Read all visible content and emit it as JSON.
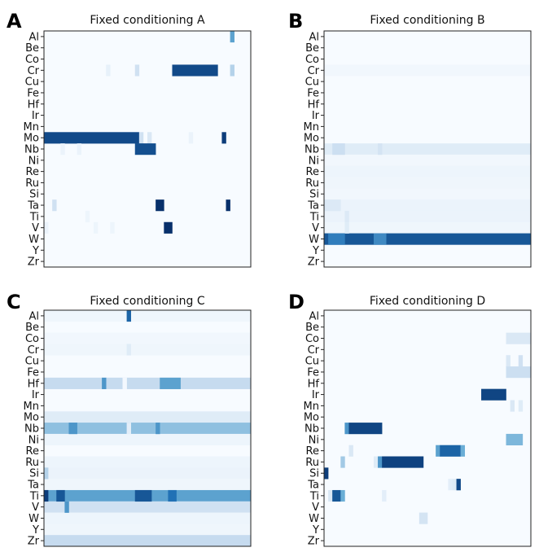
{
  "chart_data": [
    {
      "type": "heatmap",
      "panel_label": "A",
      "title": "Fixed conditioning A",
      "rows": [
        "Al",
        "Be",
        "Co",
        "Cr",
        "Cu",
        "Fe",
        "Hf",
        "Ir",
        "Mn",
        "Mo",
        "Nb",
        "Ni",
        "Re",
        "Ru",
        "Si",
        "Ta",
        "Ti",
        "V",
        "W",
        "Y",
        "Zr"
      ],
      "ncols": 50,
      "colormap": [
        "#f7fbff",
        "#c6dbef",
        "#6baed6",
        "#2171b5",
        "#08306b"
      ],
      "value_range": [
        0,
        1
      ],
      "grid": false,
      "legend": "none",
      "cells": [
        {
          "row": "Al",
          "cols": [
            45,
            45
          ],
          "value": 0.55
        },
        {
          "row": "Cr",
          "cols": [
            15,
            15
          ],
          "value": 0.08
        },
        {
          "row": "Cr",
          "cols": [
            22,
            22
          ],
          "value": 0.2
        },
        {
          "row": "Cr",
          "cols": [
            31,
            41
          ],
          "value": 0.9
        },
        {
          "row": "Cr",
          "cols": [
            45,
            45
          ],
          "value": 0.3
        },
        {
          "row": "Mo",
          "cols": [
            0,
            22
          ],
          "value": 0.9
        },
        {
          "row": "Mo",
          "cols": [
            23,
            23
          ],
          "value": 0.2
        },
        {
          "row": "Mo",
          "cols": [
            25,
            25
          ],
          "value": 0.15
        },
        {
          "row": "Mo",
          "cols": [
            35,
            35
          ],
          "value": 0.06
        },
        {
          "row": "Mo",
          "cols": [
            43,
            43
          ],
          "value": 0.95
        },
        {
          "row": "Nb",
          "cols": [
            4,
            4
          ],
          "value": 0.06
        },
        {
          "row": "Nb",
          "cols": [
            8,
            8
          ],
          "value": 0.06
        },
        {
          "row": "Nb",
          "cols": [
            22,
            26
          ],
          "value": 0.88
        },
        {
          "row": "Ta",
          "cols": [
            2,
            2
          ],
          "value": 0.2
        },
        {
          "row": "Ta",
          "cols": [
            27,
            28
          ],
          "value": 1.0
        },
        {
          "row": "Ta",
          "cols": [
            44,
            44
          ],
          "value": 1.0
        },
        {
          "row": "Ti",
          "cols": [
            10,
            10
          ],
          "value": 0.05
        },
        {
          "row": "V",
          "cols": [
            0,
            0
          ],
          "value": 0.06
        },
        {
          "row": "V",
          "cols": [
            12,
            12
          ],
          "value": 0.05
        },
        {
          "row": "V",
          "cols": [
            16,
            16
          ],
          "value": 0.05
        },
        {
          "row": "V",
          "cols": [
            29,
            30
          ],
          "value": 1.0
        }
      ]
    },
    {
      "type": "heatmap",
      "panel_label": "B",
      "title": "Fixed conditioning B",
      "rows": [
        "Al",
        "Be",
        "Co",
        "Cr",
        "Cu",
        "Fe",
        "Hf",
        "Ir",
        "Mn",
        "Mo",
        "Nb",
        "Ni",
        "Re",
        "Ru",
        "Si",
        "Ta",
        "Ti",
        "V",
        "W",
        "Y",
        "Zr"
      ],
      "ncols": 50,
      "colormap": [
        "#f7fbff",
        "#c6dbef",
        "#6baed6",
        "#2171b5",
        "#08306b"
      ],
      "value_range": [
        0,
        1
      ],
      "grid": false,
      "legend": "none",
      "row_fills": [
        {
          "row": "Cr",
          "value": 0.03
        },
        {
          "row": "Nb",
          "value": 0.12
        },
        {
          "row": "Ni",
          "value": 0.03
        },
        {
          "row": "Re",
          "value": 0.05
        },
        {
          "row": "Ru",
          "value": 0.04
        },
        {
          "row": "Si",
          "value": 0.03
        },
        {
          "row": "Ta",
          "value": 0.06
        },
        {
          "row": "Ti",
          "value": 0.06
        },
        {
          "row": "V",
          "value": 0.04
        },
        {
          "row": "W",
          "value": 0.85
        }
      ],
      "cells": [
        {
          "row": "Nb",
          "cols": [
            2,
            4
          ],
          "value": 0.22
        },
        {
          "row": "Nb",
          "cols": [
            13,
            13
          ],
          "value": 0.18
        },
        {
          "row": "Ta",
          "cols": [
            0,
            3
          ],
          "value": 0.14
        },
        {
          "row": "Ti",
          "cols": [
            5,
            5
          ],
          "value": 0.14
        },
        {
          "row": "V",
          "cols": [
            5,
            5
          ],
          "value": 0.12
        },
        {
          "row": "W",
          "cols": [
            1,
            4
          ],
          "value": 0.7
        },
        {
          "row": "W",
          "cols": [
            12,
            14
          ],
          "value": 0.65
        }
      ]
    },
    {
      "type": "heatmap",
      "panel_label": "C",
      "title": "Fixed conditioning C",
      "rows": [
        "Al",
        "Be",
        "Co",
        "Cr",
        "Cu",
        "Fe",
        "Hf",
        "Ir",
        "Mn",
        "Mo",
        "Nb",
        "Ni",
        "Re",
        "Ru",
        "Si",
        "Ta",
        "Ti",
        "V",
        "W",
        "Y",
        "Zr"
      ],
      "ncols": 50,
      "colormap": [
        "#f7fbff",
        "#c6dbef",
        "#6baed6",
        "#2171b5",
        "#08306b"
      ],
      "value_range": [
        0,
        1
      ],
      "grid": false,
      "legend": "none",
      "row_fills": [
        {
          "row": "Al",
          "value": 0.04
        },
        {
          "row": "Co",
          "value": 0.03
        },
        {
          "row": "Cr",
          "value": 0.04
        },
        {
          "row": "Hf",
          "value": 0.25
        },
        {
          "row": "Mo",
          "value": 0.12
        },
        {
          "row": "Nb",
          "value": 0.4
        },
        {
          "row": "Ni",
          "value": 0.05
        },
        {
          "row": "Ru",
          "value": 0.05
        },
        {
          "row": "Si",
          "value": 0.06
        },
        {
          "row": "Ta",
          "value": 0.04
        },
        {
          "row": "Ti",
          "value": 0.55
        },
        {
          "row": "V",
          "value": 0.2
        },
        {
          "row": "W",
          "value": 0.05
        },
        {
          "row": "Y",
          "value": 0.04
        },
        {
          "row": "Zr",
          "value": 0.25
        }
      ],
      "cells": [
        {
          "row": "Al",
          "cols": [
            20,
            20
          ],
          "value": 0.8
        },
        {
          "row": "Cr",
          "cols": [
            20,
            20
          ],
          "value": 0.12
        },
        {
          "row": "Hf",
          "cols": [
            14,
            14
          ],
          "value": 0.6
        },
        {
          "row": "Hf",
          "cols": [
            28,
            32
          ],
          "value": 0.55
        },
        {
          "row": "Hf",
          "cols": [
            19,
            19
          ],
          "value": 0.02
        },
        {
          "row": "Nb",
          "cols": [
            6,
            7
          ],
          "value": 0.6
        },
        {
          "row": "Nb",
          "cols": [
            20,
            20
          ],
          "value": 0.1
        },
        {
          "row": "Nb",
          "cols": [
            27,
            27
          ],
          "value": 0.6
        },
        {
          "row": "Si",
          "cols": [
            0,
            0
          ],
          "value": 0.3
        },
        {
          "row": "Ti",
          "cols": [
            0,
            0
          ],
          "value": 0.95
        },
        {
          "row": "Ti",
          "cols": [
            3,
            4
          ],
          "value": 0.85
        },
        {
          "row": "Ti",
          "cols": [
            22,
            25
          ],
          "value": 0.85
        },
        {
          "row": "Ti",
          "cols": [
            30,
            31
          ],
          "value": 0.75
        },
        {
          "row": "V",
          "cols": [
            5,
            5
          ],
          "value": 0.6
        }
      ]
    },
    {
      "type": "heatmap",
      "panel_label": "D",
      "title": "Fixed conditioning D",
      "rows": [
        "Al",
        "Be",
        "Co",
        "Cr",
        "Cu",
        "Fe",
        "Hf",
        "Ir",
        "Mn",
        "Mo",
        "Nb",
        "Ni",
        "Re",
        "Ru",
        "Si",
        "Ta",
        "Ti",
        "V",
        "W",
        "Y",
        "Zr"
      ],
      "ncols": 50,
      "colormap": [
        "#f7fbff",
        "#c6dbef",
        "#6baed6",
        "#2171b5",
        "#08306b"
      ],
      "value_range": [
        0,
        1
      ],
      "grid": false,
      "legend": "none",
      "cells": [
        {
          "row": "Co",
          "cols": [
            44,
            49
          ],
          "value": 0.15
        },
        {
          "row": "Cu",
          "cols": [
            44,
            44
          ],
          "value": 0.15
        },
        {
          "row": "Cu",
          "cols": [
            47,
            47
          ],
          "value": 0.2
        },
        {
          "row": "Fe",
          "cols": [
            44,
            49
          ],
          "value": 0.22
        },
        {
          "row": "Ir",
          "cols": [
            38,
            43
          ],
          "value": 0.92
        },
        {
          "row": "Mn",
          "cols": [
            45,
            45
          ],
          "value": 0.15
        },
        {
          "row": "Mn",
          "cols": [
            47,
            47
          ],
          "value": 0.12
        },
        {
          "row": "Nb",
          "cols": [
            5,
            5
          ],
          "value": 0.6
        },
        {
          "row": "Nb",
          "cols": [
            6,
            13
          ],
          "value": 0.92
        },
        {
          "row": "Ni",
          "cols": [
            44,
            47
          ],
          "value": 0.45
        },
        {
          "row": "Re",
          "cols": [
            6,
            6
          ],
          "value": 0.15
        },
        {
          "row": "Re",
          "cols": [
            27,
            27
          ],
          "value": 0.55
        },
        {
          "row": "Re",
          "cols": [
            28,
            32
          ],
          "value": 0.8
        },
        {
          "row": "Re",
          "cols": [
            33,
            33
          ],
          "value": 0.5
        },
        {
          "row": "Ru",
          "cols": [
            4,
            4
          ],
          "value": 0.35
        },
        {
          "row": "Ru",
          "cols": [
            12,
            12
          ],
          "value": 0.12
        },
        {
          "row": "Ru",
          "cols": [
            13,
            13
          ],
          "value": 0.6
        },
        {
          "row": "Ru",
          "cols": [
            14,
            23
          ],
          "value": 0.93
        },
        {
          "row": "Si",
          "cols": [
            0,
            0
          ],
          "value": 0.95
        },
        {
          "row": "Ta",
          "cols": [
            30,
            30
          ],
          "value": 0.1
        },
        {
          "row": "Ta",
          "cols": [
            31,
            31
          ],
          "value": 0.12
        },
        {
          "row": "Ta",
          "cols": [
            32,
            32
          ],
          "value": 0.9
        },
        {
          "row": "Ti",
          "cols": [
            1,
            1
          ],
          "value": 0.15
        },
        {
          "row": "Ti",
          "cols": [
            2,
            3
          ],
          "value": 0.85
        },
        {
          "row": "Ti",
          "cols": [
            4,
            4
          ],
          "value": 0.5
        },
        {
          "row": "Ti",
          "cols": [
            14,
            14
          ],
          "value": 0.1
        },
        {
          "row": "W",
          "cols": [
            23,
            24
          ],
          "value": 0.18
        }
      ]
    }
  ]
}
